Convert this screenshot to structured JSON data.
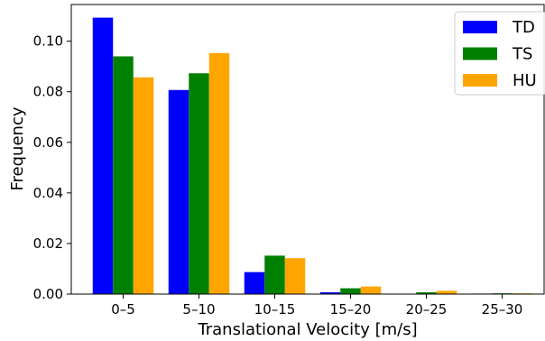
{
  "chart_data": {
    "type": "bar",
    "categories": [
      "0–5",
      "5–10",
      "10–15",
      "15–20",
      "20–25",
      "25–30"
    ],
    "series": [
      {
        "name": "TD",
        "color": "#0000ff",
        "values": [
          0.1093,
          0.0807,
          0.0087,
          0.0007,
          0.0,
          0.0002
        ]
      },
      {
        "name": "TS",
        "color": "#008000",
        "values": [
          0.094,
          0.0873,
          0.0152,
          0.0023,
          0.0007,
          0.0003
        ]
      },
      {
        "name": "HU",
        "color": "#ffa500",
        "values": [
          0.0857,
          0.0953,
          0.0142,
          0.003,
          0.0013,
          0.0003
        ]
      }
    ],
    "xlabel": "Translational Velocity [m/s]",
    "ylabel": "Frequency",
    "ylim": [
      0,
      0.1145
    ],
    "yticks": [
      0.0,
      0.02,
      0.04,
      0.06,
      0.08,
      0.1
    ],
    "ytick_labels": [
      "0.00",
      "0.02",
      "0.04",
      "0.06",
      "0.08",
      "0.10"
    ],
    "grid": false,
    "legend_position": "top-right"
  }
}
